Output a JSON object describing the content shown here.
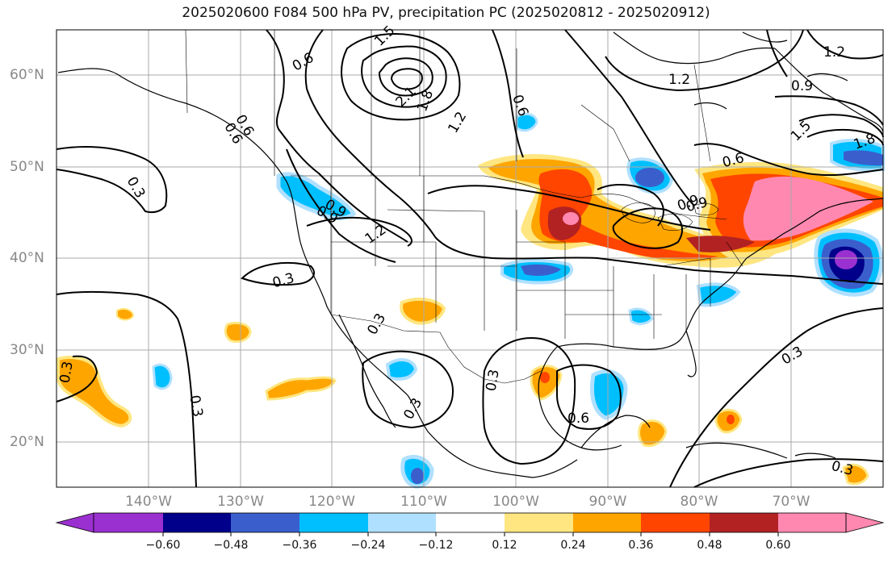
{
  "title": "2025020600 F084 500 hPa PV, precipitation PC (2025020812 - 2025020912)",
  "lat_labels": [
    "60°N",
    "50°N",
    "40°N",
    "30°N",
    "20°N"
  ],
  "lon_labels": [
    "140°W",
    "130°W",
    "120°W",
    "110°W",
    "100°W",
    "90°W",
    "80°W",
    "70°W"
  ],
  "colorbar": {
    "ticks": [
      "−0.60",
      "−0.48",
      "−0.36",
      "−0.24",
      "−0.12",
      "0.12",
      "0.24",
      "0.36",
      "0.48",
      "0.60"
    ],
    "colors": [
      "#9b30d0",
      "#00008b",
      "#3a5fcd",
      "#00bfff",
      "#b0e0ff",
      "#ffffff",
      "#ffe680",
      "#ffa500",
      "#ff4500",
      "#b22222",
      "#ff88b0"
    ]
  },
  "contour_labels": [
    "0.3",
    "0.6",
    "0.9",
    "1.2",
    "1.5",
    "1.8",
    "2.1",
    "0.6",
    "1.2",
    "0.9",
    "1.5",
    "0.3",
    "0.3",
    "0.6",
    "0.3",
    "0.3",
    "0.9",
    "0.6",
    "1.8",
    "0.3",
    "0.3",
    "0.3",
    "0.3",
    "0.6",
    "0.9",
    "1.2",
    "1.2",
    "0.6",
    "0.9",
    "0.3",
    "0.3",
    "0.3"
  ]
}
